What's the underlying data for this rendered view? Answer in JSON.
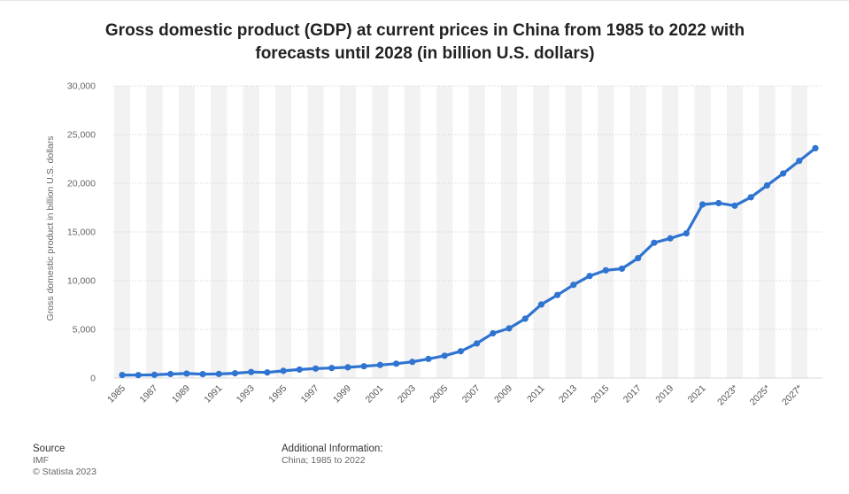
{
  "title_line1": "Gross domestic product (GDP) at current prices in China from 1985 to 2022 with",
  "title_line2": "forecasts until 2028 (in billion U.S. dollars)",
  "ylabel": "Gross domestic product in billion U.S. dollars",
  "footer": {
    "source_heading": "Source",
    "source_name": "IMF",
    "copyright": "© Statista 2023",
    "additional_heading": "Additional Information:",
    "additional_text": "China; 1985 to 2022"
  },
  "colors": {
    "line": "#2f74d0",
    "band": "#f2f2f2",
    "grid": "#cccccc"
  },
  "chart_data": {
    "type": "line",
    "x": [
      "1985",
      "1986",
      "1987",
      "1988",
      "1989",
      "1990",
      "1991",
      "1992",
      "1993",
      "1994",
      "1995",
      "1996",
      "1997",
      "1998",
      "1999",
      "2000",
      "2001",
      "2002",
      "2003",
      "2004",
      "2005",
      "2006",
      "2007",
      "2008",
      "2009",
      "2010",
      "2011",
      "2012",
      "2013",
      "2014",
      "2015",
      "2016",
      "2017",
      "2018",
      "2019",
      "2020",
      "2021",
      "2022",
      "2023*",
      "2024*",
      "2025*",
      "2026*",
      "2027*",
      "2028*"
    ],
    "xtick_labels": [
      "1985",
      "1987",
      "1989",
      "1991",
      "1993",
      "1995",
      "1997",
      "1999",
      "2001",
      "2003",
      "2005",
      "2007",
      "2009",
      "2011",
      "2013",
      "2015",
      "2017",
      "2019",
      "2021",
      "2023*",
      "2025*",
      "2027*"
    ],
    "series": [
      {
        "values": [
          310,
          300,
          330,
          410,
          460,
          400,
          420,
          490,
          620,
          570,
          740,
          870,
          970,
          1030,
          1100,
          1210,
          1340,
          1470,
          1660,
          1960,
          2290,
          2750,
          3550,
          4590,
          5100,
          6090,
          7550,
          8530,
          9570,
          10480,
          11060,
          11230,
          12310,
          13890,
          14340,
          14860,
          17820,
          17960,
          17700,
          18560,
          19780,
          21000,
          22300,
          23600
        ]
      }
    ],
    "yticks": [
      0,
      5000,
      10000,
      15000,
      20000,
      25000,
      30000
    ],
    "ytick_labels": [
      "0",
      "5,000",
      "10,000",
      "15,000",
      "20,000",
      "25,000",
      "30,000"
    ],
    "ylim": [
      0,
      30000
    ],
    "grid": true,
    "legend": "none"
  }
}
